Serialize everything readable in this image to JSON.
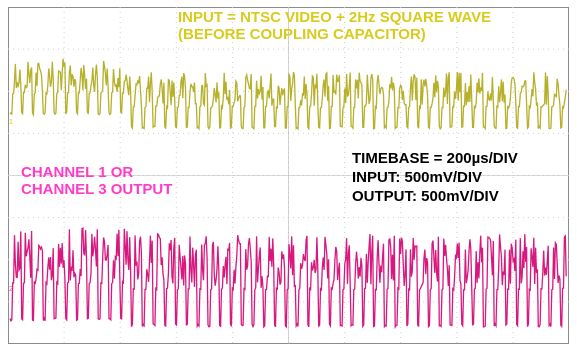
{
  "scope": {
    "grid": {
      "divisions_x": 10,
      "divisions_y": 8,
      "grid_color": "#d0d0d0",
      "border_color": "#8c8c8c"
    },
    "colors": {
      "input_trace": "#b7b02a",
      "output_trace": "#d8187e",
      "input_text": "#d8cb1c",
      "output_text": "#ff3cc8",
      "settings_text": "#000000"
    },
    "labels": {
      "input_line1": "INPUT = NTSC VIDEO + 2Hz SQUARE WAVE",
      "input_line2": "(BEFORE COUPLING CAPACITOR)",
      "channel_line1": "CHANNEL 1 OR",
      "channel_line2": "CHANNEL 3 OUTPUT",
      "settings_line1": "TIMEBASE = 200µs/DIV",
      "settings_line2": "INPUT: 500mV/DIV",
      "settings_line3": "OUTPUT: 500mV/DIV"
    },
    "markers": {
      "ch1": "1",
      "ch2": "2"
    }
  }
}
